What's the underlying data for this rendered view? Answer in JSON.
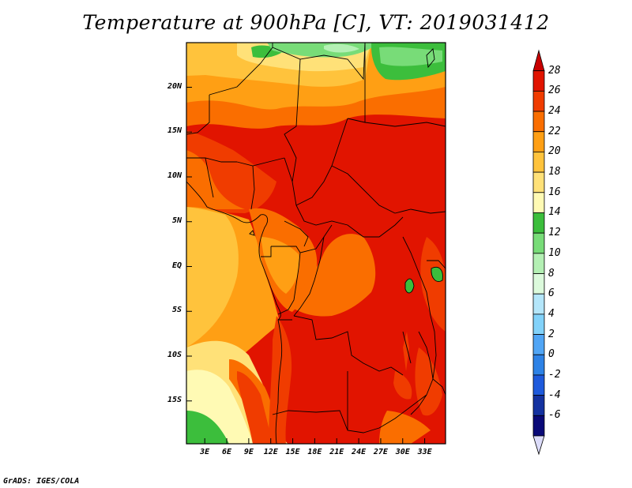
{
  "title": "Temperature at 900hPa [C], VT: 2019031412",
  "credit": "GrADS: IGES/COLA",
  "map": {
    "lat_ticks": [
      {
        "label": "20N",
        "lat": 20
      },
      {
        "label": "15N",
        "lat": 15
      },
      {
        "label": "10N",
        "lat": 10
      },
      {
        "label": "5N",
        "lat": 5
      },
      {
        "label": "EQ",
        "lat": 0
      },
      {
        "label": "5S",
        "lat": -5
      },
      {
        "label": "10S",
        "lat": -10
      },
      {
        "label": "15S",
        "lat": -15
      }
    ],
    "lon_ticks": [
      {
        "label": "3E",
        "lon": 3
      },
      {
        "label": "6E",
        "lon": 6
      },
      {
        "label": "9E",
        "lon": 9
      },
      {
        "label": "12E",
        "lon": 12
      },
      {
        "label": "15E",
        "lon": 15
      },
      {
        "label": "18E",
        "lon": 18
      },
      {
        "label": "21E",
        "lon": 21
      },
      {
        "label": "24E",
        "lon": 24
      },
      {
        "label": "27E",
        "lon": 27
      },
      {
        "label": "30E",
        "lon": 30
      },
      {
        "label": "33E",
        "lon": 33
      }
    ]
  },
  "colorbar": {
    "labels": [
      "28",
      "26",
      "24",
      "22",
      "20",
      "18",
      "16",
      "14",
      "12",
      "10",
      "8",
      "6",
      "4",
      "2",
      "0",
      "-2",
      "-4",
      "-6"
    ],
    "colors": [
      "#e11400",
      "#f03c00",
      "#fa6e00",
      "#ff9f14",
      "#ffc33c",
      "#ffe178",
      "#fffab4",
      "#3cbe3c",
      "#78dc78",
      "#b4f0b4",
      "#dcfadc",
      "#b4e6fa",
      "#82d2fa",
      "#50a5f5",
      "#2d82e6",
      "#1e5adc",
      "#1432a0",
      "#0a0a78"
    ]
  }
}
